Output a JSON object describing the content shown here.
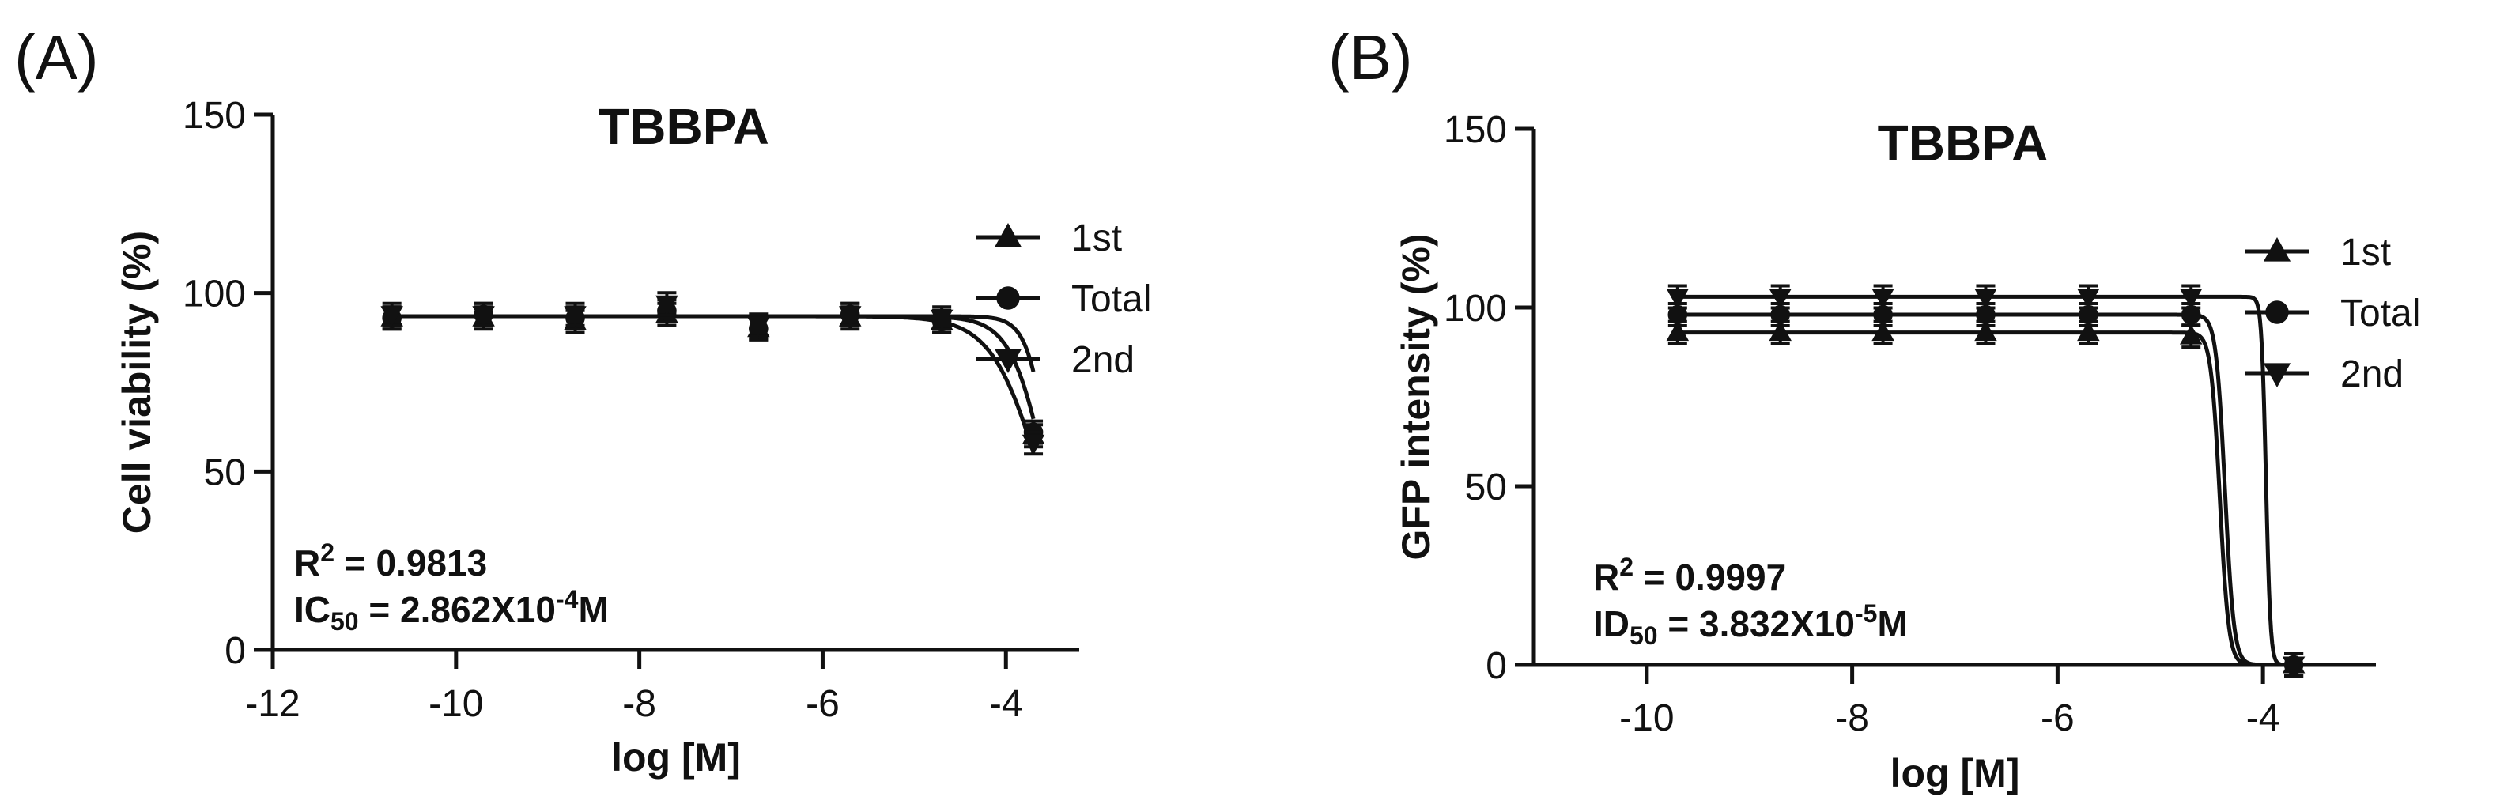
{
  "chart_data": [
    {
      "type": "line",
      "panel_label": "(A)",
      "title": "TBBPA",
      "xlabel": "log [M]",
      "ylabel": "Cell viability (%)",
      "xlim": [
        -12,
        -3.2
      ],
      "ylim": [
        0,
        150
      ],
      "x_ticks": [
        -12,
        -10,
        -8,
        -6,
        -4
      ],
      "y_ticks": [
        0,
        50,
        100,
        150
      ],
      "grid": false,
      "legend_position": "right",
      "annotations": [
        {
          "main": "R",
          "sup": "2",
          "tail": " = 0.9813"
        },
        {
          "main": "IC",
          "sub": "50",
          "mid": " = 2.862X10",
          "sup": "-4",
          "tail": "M"
        }
      ],
      "x": [
        -10.7,
        -9.7,
        -8.7,
        -7.7,
        -6.7,
        -5.7,
        -4.7,
        -3.7
      ],
      "series": [
        {
          "name": "1st",
          "marker": "triangle-up",
          "values": [
            93,
            93,
            92,
            94,
            90,
            93,
            92,
            60
          ],
          "fit": {
            "top": 93.5,
            "bottom": 0,
            "logEC50": -3.6,
            "hill": 1.6
          }
        },
        {
          "name": "Total",
          "marker": "circle",
          "values": [
            93,
            94,
            93,
            95,
            90,
            94,
            92,
            61
          ],
          "fit": {
            "top": 93.5,
            "bottom": 0,
            "logEC50": -3.54,
            "hill": 2.2
          }
        },
        {
          "name": "2nd",
          "marker": "triangle-down",
          "values": [
            94,
            94,
            94,
            97,
            91,
            94,
            93,
            58
          ],
          "fit": {
            "top": 93.5,
            "bottom": 0,
            "logEC50": -3.5,
            "hill": 3.5
          }
        }
      ]
    },
    {
      "type": "line",
      "panel_label": "(B)",
      "title": "TBBPA",
      "xlabel": "log [M]",
      "ylabel": "GFP intensity (%)",
      "xlim": [
        -11.1,
        -2.9
      ],
      "ylim": [
        0,
        150
      ],
      "x_ticks": [
        -10,
        -8,
        -6,
        -4
      ],
      "y_ticks": [
        0,
        50,
        100,
        150
      ],
      "grid": false,
      "legend_position": "right",
      "annotations": [
        {
          "main": "R",
          "sup": "2",
          "tail": " = 0.9997"
        },
        {
          "main": "ID",
          "sub": "50",
          "mid": " = 3.832X10",
          "sup": "-5",
          "tail": "M"
        }
      ],
      "x": [
        -9.7,
        -8.7,
        -7.7,
        -6.7,
        -5.7,
        -4.7,
        -3.7
      ],
      "series": [
        {
          "name": "1st",
          "marker": "triangle-up",
          "values": [
            93,
            93,
            93,
            93,
            93,
            92,
            0
          ],
          "fit": {
            "top": 93,
            "bottom": 0,
            "logEC50": -4.42,
            "hill": 10
          }
        },
        {
          "name": "Total",
          "marker": "circle",
          "values": [
            98,
            98,
            98,
            98,
            98,
            98,
            0
          ],
          "fit": {
            "top": 98,
            "bottom": 0,
            "logEC50": -4.37,
            "hill": 10
          }
        },
        {
          "name": "2nd",
          "marker": "triangle-down",
          "values": [
            103,
            103,
            103,
            103,
            103,
            103,
            0
          ],
          "fit": {
            "top": 103,
            "bottom": 0,
            "logEC50": -3.97,
            "hill": 20
          }
        }
      ]
    }
  ]
}
